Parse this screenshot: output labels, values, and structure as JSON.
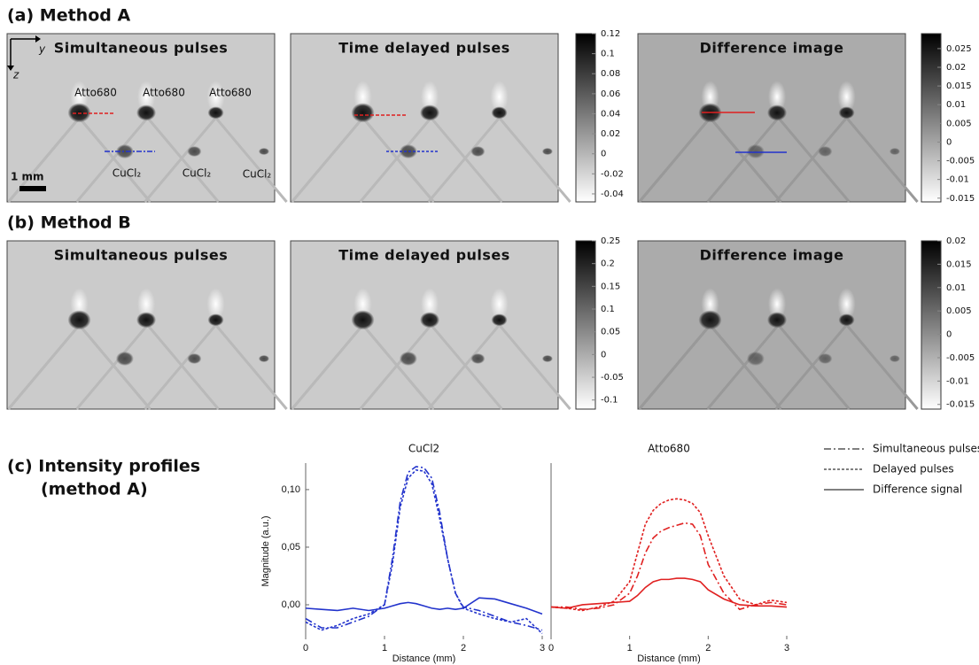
{
  "panels": [
    {
      "label": "(a) Method A",
      "images": [
        {
          "title": "Simultaneous pulses"
        },
        {
          "title": "Time delayed pulses"
        },
        {
          "title": "Difference image"
        }
      ],
      "colorbars": [
        {
          "lim": [
            -0.048,
            0.12
          ],
          "ticks": [
            0.12,
            0.1,
            0.08,
            0.06,
            0.04,
            0.02,
            0,
            -0.02,
            -0.04
          ]
        },
        {
          "lim": [
            -0.016,
            0.029
          ],
          "ticks": [
            0.025,
            0.02,
            0.015,
            0.01,
            0.005,
            0,
            -0.005,
            -0.01,
            -0.015
          ]
        }
      ],
      "annotations": {
        "y_axis": "y",
        "z_axis": "z",
        "scale": "1 mm",
        "dyes": [
          "Atto680",
          "Atto680",
          "Atto680"
        ],
        "quenchers": [
          "CuCl₂",
          "CuCl₂",
          "CuCl₂"
        ]
      }
    },
    {
      "label": "(b) Method B",
      "images": [
        {
          "title": "Simultaneous pulses"
        },
        {
          "title": "Time delayed pulses"
        },
        {
          "title": "Difference image"
        }
      ],
      "colorbars": [
        {
          "lim": [
            -0.12,
            0.25
          ],
          "ticks": [
            0.25,
            0.2,
            0.15,
            0.1,
            0.05,
            0,
            -0.05,
            -0.1
          ]
        },
        {
          "lim": [
            -0.016,
            0.02
          ],
          "ticks": [
            0.02,
            0.015,
            0.01,
            0.005,
            0,
            -0.005,
            -0.01,
            -0.015
          ]
        }
      ]
    }
  ],
  "profiles": {
    "label": [
      "(c) Intensity profiles",
      "(method A)"
    ],
    "legend": [
      {
        "label": "Simultaneous pulses",
        "dash": "8,3,2,3"
      },
      {
        "label": "Delayed pulses",
        "dash": "3,2"
      },
      {
        "label": "Difference signal",
        "dash": "none"
      }
    ]
  },
  "chart_data": [
    {
      "type": "line",
      "title": "CuCl2",
      "x_label": "Distance (mm)",
      "y_label": "Magnitude (a.u.)",
      "xlim": [
        0,
        3
      ],
      "ylim": [
        -0.03,
        0.123
      ],
      "xticks": [
        0,
        1,
        2,
        3
      ],
      "yticks": [
        {
          "value": 0,
          "label": "0,00"
        },
        {
          "value": 0.05,
          "label": "0,05"
        },
        {
          "value": 0.1,
          "label": "0,10"
        }
      ],
      "x": [
        0,
        0.2,
        0.4,
        0.6,
        0.8,
        1.0,
        1.1,
        1.2,
        1.3,
        1.4,
        1.5,
        1.6,
        1.7,
        1.8,
        1.9,
        2.0,
        2.2,
        2.4,
        2.6,
        2.8,
        3.0
      ],
      "series": [
        {
          "color": "#2233cc",
          "dash": "8,3,2,3",
          "values": [
            -0.012,
            -0.02,
            -0.02,
            -0.015,
            -0.01,
            0.0,
            0.04,
            0.09,
            0.115,
            0.12,
            0.119,
            0.11,
            0.08,
            0.04,
            0.01,
            -0.002,
            -0.005,
            -0.01,
            -0.015,
            -0.018,
            -0.022
          ]
        },
        {
          "color": "#2233cc",
          "dash": "3,2",
          "values": [
            -0.015,
            -0.022,
            -0.018,
            -0.012,
            -0.008,
            0.0,
            0.035,
            0.085,
            0.11,
            0.117,
            0.116,
            0.105,
            0.075,
            0.04,
            0.01,
            -0.003,
            -0.008,
            -0.012,
            -0.015,
            -0.012,
            -0.025
          ]
        },
        {
          "color": "#2233cc",
          "dash": "none",
          "values": [
            -0.003,
            -0.004,
            -0.005,
            -0.003,
            -0.005,
            -0.003,
            -0.001,
            0.001,
            0.002,
            0.001,
            -0.001,
            -0.003,
            -0.004,
            -0.003,
            -0.004,
            -0.003,
            0.006,
            0.005,
            0.001,
            -0.003,
            -0.008
          ]
        }
      ]
    },
    {
      "type": "line",
      "title": "Atto680",
      "x_label": "Distance (mm)",
      "xlim": [
        0,
        3
      ],
      "ylim": [
        -0.03,
        0.123
      ],
      "xticks": [
        0,
        1,
        2,
        3
      ],
      "x": [
        0,
        0.2,
        0.4,
        0.6,
        0.8,
        1.0,
        1.1,
        1.2,
        1.3,
        1.4,
        1.5,
        1.6,
        1.7,
        1.8,
        1.9,
        2.0,
        2.2,
        2.4,
        2.6,
        2.8,
        3.0
      ],
      "series": [
        {
          "color": "#e02020",
          "dash": "8,3,2,3",
          "values": [
            -0.002,
            -0.002,
            -0.004,
            -0.003,
            0.0,
            0.01,
            0.025,
            0.045,
            0.058,
            0.064,
            0.067,
            0.069,
            0.071,
            0.07,
            0.06,
            0.035,
            0.01,
            -0.004,
            0.0,
            0.002,
            0.0
          ]
        },
        {
          "color": "#e02020",
          "dash": "3,2",
          "values": [
            -0.002,
            -0.003,
            -0.005,
            -0.002,
            0.003,
            0.02,
            0.045,
            0.07,
            0.082,
            0.088,
            0.091,
            0.092,
            0.091,
            0.088,
            0.08,
            0.06,
            0.025,
            0.005,
            0.0,
            0.004,
            0.002
          ]
        },
        {
          "color": "#e02020",
          "dash": "none",
          "values": [
            -0.002,
            -0.003,
            0.0,
            0.001,
            0.002,
            0.003,
            0.008,
            0.015,
            0.02,
            0.022,
            0.022,
            0.023,
            0.023,
            0.022,
            0.02,
            0.013,
            0.005,
            0.0,
            -0.001,
            -0.001,
            -0.002
          ]
        }
      ]
    }
  ]
}
